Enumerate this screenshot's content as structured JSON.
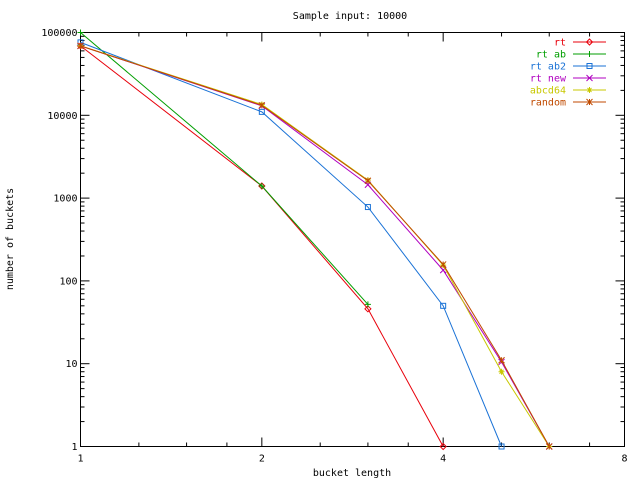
{
  "chart_data": {
    "type": "line",
    "title": "Sample input: 10000",
    "xlabel": "bucket length",
    "ylabel": "number of buckets",
    "x_scale": "log2",
    "y_scale": "log10",
    "xlim": [
      1,
      8
    ],
    "ylim": [
      1,
      100000
    ],
    "x_ticks": [
      1,
      2,
      4,
      8
    ],
    "x_tick_labels": [
      "1",
      "2",
      "4",
      "8"
    ],
    "y_ticks": [
      1,
      10,
      100,
      1000,
      10000,
      100000
    ],
    "y_tick_labels": [
      "1",
      "10",
      "100",
      "1000",
      "10000",
      "100000"
    ],
    "grid": false,
    "legend_position": "top-right",
    "series": [
      {
        "name": "rt",
        "color": "#e8000b",
        "marker": "diamond",
        "points": [
          [
            1,
            69000
          ],
          [
            2,
            1400
          ],
          [
            3,
            46
          ],
          [
            4,
            1
          ]
        ]
      },
      {
        "name": "rt ab",
        "color": "#009e00",
        "marker": "plus",
        "points": [
          [
            1,
            100000
          ],
          [
            2,
            1400
          ],
          [
            3,
            52
          ]
        ]
      },
      {
        "name": "rt ab2",
        "color": "#1a72d6",
        "marker": "square",
        "points": [
          [
            1,
            76000
          ],
          [
            2,
            11000
          ],
          [
            3,
            780
          ],
          [
            4,
            50
          ],
          [
            5,
            1
          ]
        ]
      },
      {
        "name": "rt new",
        "color": "#b000c0",
        "marker": "cross",
        "points": [
          [
            1,
            69000
          ],
          [
            2,
            13000
          ],
          [
            3,
            1450
          ],
          [
            4,
            135
          ],
          [
            5,
            10.5
          ],
          [
            6,
            1
          ]
        ]
      },
      {
        "name": "abcd64",
        "color": "#c8c800",
        "marker": "star",
        "points": [
          [
            1,
            69000
          ],
          [
            2,
            13500
          ],
          [
            3,
            1650
          ],
          [
            4,
            155
          ],
          [
            5,
            8
          ],
          [
            6,
            1
          ]
        ]
      },
      {
        "name": "random",
        "color": "#c04a00",
        "marker": "asterisk",
        "points": [
          [
            1,
            69000
          ],
          [
            2,
            13200
          ],
          [
            3,
            1620
          ],
          [
            4,
            158
          ],
          [
            5,
            11
          ],
          [
            6,
            1
          ]
        ]
      }
    ]
  }
}
